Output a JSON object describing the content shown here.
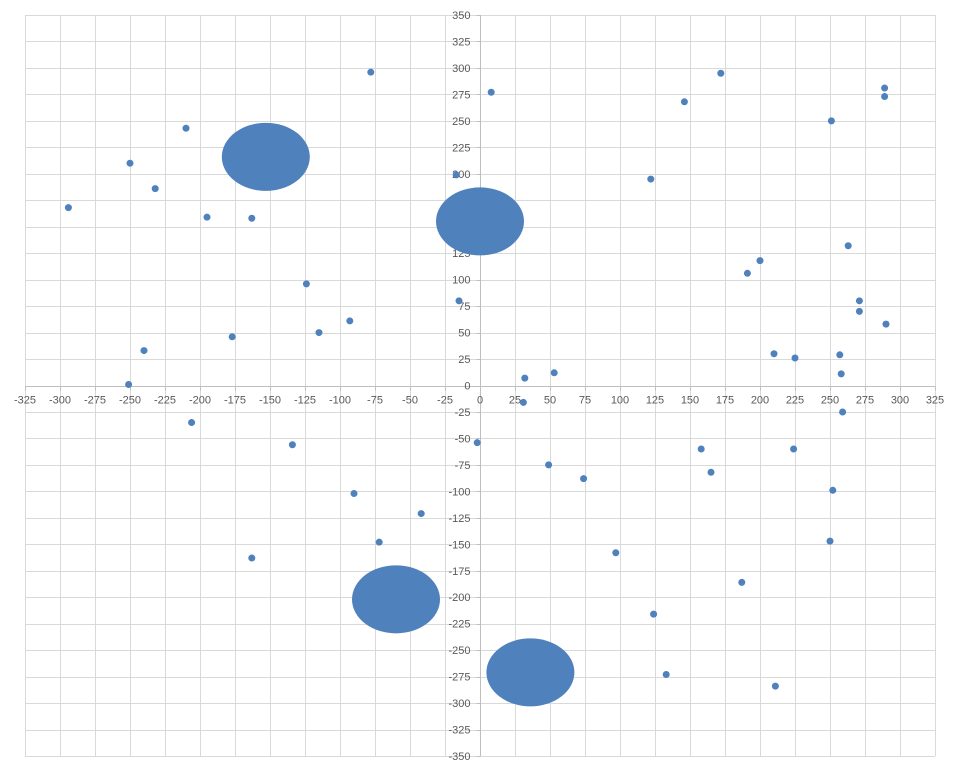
{
  "chart_data": {
    "type": "scatter",
    "title": "",
    "xlabel": "",
    "ylabel": "",
    "xlim": [
      -325,
      325
    ],
    "ylim": [
      -350,
      350
    ],
    "x_ticks": [
      -325,
      -300,
      -275,
      -250,
      -225,
      -200,
      -175,
      -150,
      -125,
      -100,
      -75,
      -50,
      -25,
      0,
      25,
      50,
      75,
      100,
      125,
      150,
      175,
      200,
      225,
      250,
      275,
      300,
      325
    ],
    "y_ticks": [
      350,
      325,
      300,
      275,
      250,
      225,
      200,
      175,
      150,
      125,
      100,
      75,
      50,
      25,
      0,
      -25,
      -50,
      -75,
      -100,
      -125,
      -150,
      -175,
      -200,
      -225,
      -250,
      -275,
      -300,
      -325,
      -350
    ],
    "grid": true,
    "legend": "none",
    "color": "#4f81bd",
    "series": [
      {
        "points": [
          [
            -78,
            296
          ],
          [
            -210,
            243
          ],
          [
            -250,
            210
          ],
          [
            -232,
            186
          ],
          [
            -294,
            168
          ],
          [
            -195,
            159
          ],
          [
            -163,
            158
          ],
          [
            -124,
            96
          ],
          [
            -115,
            50
          ],
          [
            -93,
            61
          ],
          [
            -177,
            46
          ],
          [
            -240,
            33
          ],
          [
            -251,
            1
          ],
          [
            -206,
            -35
          ],
          [
            -134,
            -56
          ],
          [
            -90,
            -102
          ],
          [
            -72,
            -148
          ],
          [
            -42,
            -121
          ],
          [
            -163,
            -163
          ],
          [
            -2,
            -54
          ],
          [
            -17,
            199
          ],
          [
            -15,
            80
          ],
          [
            8,
            277
          ],
          [
            146,
            268
          ],
          [
            172,
            295
          ],
          [
            122,
            195
          ],
          [
            251,
            250
          ],
          [
            289,
            281
          ],
          [
            289,
            273
          ],
          [
            263,
            132
          ],
          [
            200,
            118
          ],
          [
            191,
            106
          ],
          [
            271,
            80
          ],
          [
            271,
            70
          ],
          [
            290,
            58
          ],
          [
            210,
            30
          ],
          [
            225,
            26
          ],
          [
            257,
            29
          ],
          [
            258,
            11
          ],
          [
            32,
            7
          ],
          [
            53,
            12
          ],
          [
            31,
            -16
          ],
          [
            259,
            -25
          ],
          [
            49,
            -75
          ],
          [
            74,
            -88
          ],
          [
            158,
            -60
          ],
          [
            165,
            -82
          ],
          [
            224,
            -60
          ],
          [
            252,
            -99
          ],
          [
            250,
            -147
          ],
          [
            97,
            -158
          ],
          [
            187,
            -186
          ],
          [
            124,
            -216
          ],
          [
            133,
            -273
          ],
          [
            211,
            -284
          ]
        ]
      },
      {
        "points_large": [
          [
            -153,
            216
          ],
          [
            0,
            155
          ],
          [
            -60,
            -202
          ],
          [
            36,
            -271
          ]
        ]
      }
    ]
  }
}
